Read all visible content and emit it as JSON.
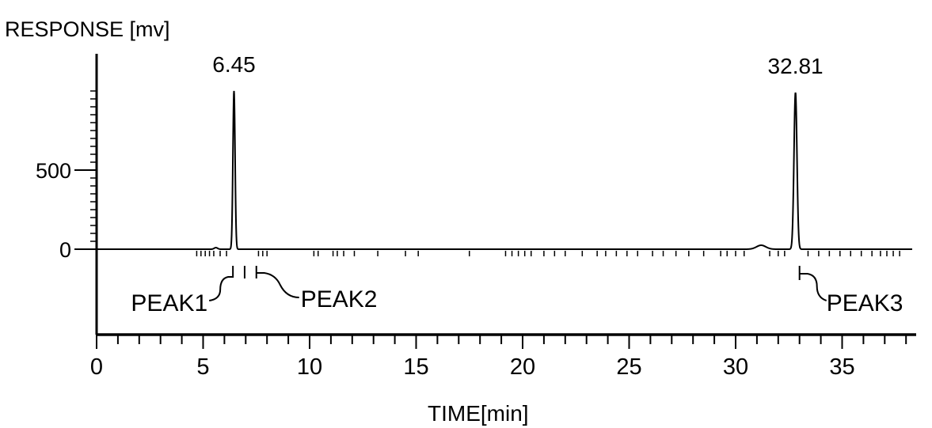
{
  "chart_data": {
    "type": "line",
    "ylabel": "RESPONSE [mv]",
    "xlabel": "TIME[min]",
    "xlim": [
      0,
      38
    ],
    "ylim": [
      0,
      1000
    ],
    "x_ticks": [
      0,
      5,
      10,
      15,
      20,
      25,
      30,
      35
    ],
    "y_ticks": [
      0,
      500
    ],
    "grid": false,
    "peaks": [
      {
        "time": 6.45,
        "height": 1000,
        "label": "6.45"
      },
      {
        "time": 32.81,
        "height": 990,
        "label": "32.81"
      }
    ],
    "minor_peaks": [
      {
        "time": 5.6,
        "height": 10
      },
      {
        "time": 31.2,
        "height": 25
      }
    ],
    "annotations": [
      {
        "text": "PEAK1",
        "time": 6.4
      },
      {
        "text": "PEAK2",
        "time": 7.5
      },
      {
        "text": "PEAK3",
        "time": 33.0
      }
    ]
  }
}
